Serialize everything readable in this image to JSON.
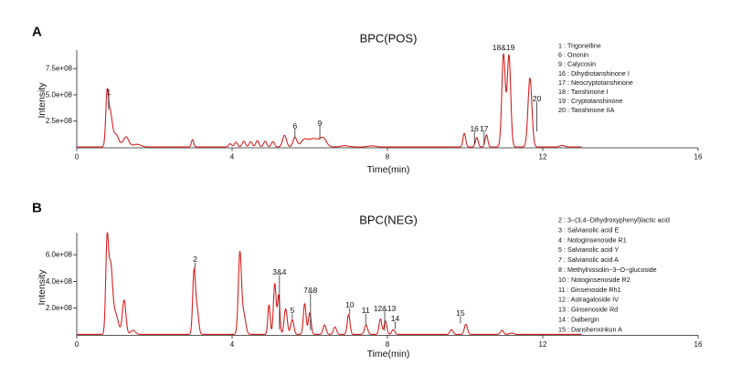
{
  "chart_data": [
    {
      "type": "line",
      "panel_label": "A",
      "title": "BPC(POS)",
      "xlabel": "Time(min)",
      "ylabel": "Intensity",
      "xlim": [
        0,
        16
      ],
      "ylim": [
        0,
        925000000
      ],
      "x_ticks": [
        0,
        4,
        8,
        12,
        16
      ],
      "x_tick_labels": [
        "0",
        "4",
        "8",
        "12",
        "16"
      ],
      "y_ticks": [
        250000000,
        500000000,
        750000000
      ],
      "y_tick_labels": [
        "2.5e+08",
        "5.0e+08",
        "7.5e+08"
      ],
      "series": [
        {
          "name": "BPC(POS)",
          "color": "#d62020",
          "t_range": [
            0,
            13
          ],
          "baseline": 4000000,
          "peaks": [
            {
              "t": 0.78,
              "h": 460000000,
              "w": 0.035
            },
            {
              "t": 0.86,
              "h": 300000000,
              "w": 0.05
            },
            {
              "t": 1.0,
              "h": 120000000,
              "w": 0.08
            },
            {
              "t": 1.27,
              "h": 95000000,
              "w": 0.07
            },
            {
              "t": 1.55,
              "h": 25000000,
              "w": 0.1
            },
            {
              "t": 2.98,
              "h": 70000000,
              "w": 0.03
            },
            {
              "t": 3.95,
              "h": 30000000,
              "w": 0.04
            },
            {
              "t": 4.1,
              "h": 45000000,
              "w": 0.04
            },
            {
              "t": 4.3,
              "h": 55000000,
              "w": 0.04
            },
            {
              "t": 4.48,
              "h": 50000000,
              "w": 0.04
            },
            {
              "t": 4.65,
              "h": 60000000,
              "w": 0.04
            },
            {
              "t": 4.85,
              "h": 55000000,
              "w": 0.04
            },
            {
              "t": 5.05,
              "h": 50000000,
              "w": 0.04
            },
            {
              "t": 5.35,
              "h": 110000000,
              "w": 0.05
            },
            {
              "t": 5.62,
              "h": 90000000,
              "w": 0.05
            },
            {
              "t": 5.85,
              "h": 55000000,
              "w": 0.08
            },
            {
              "t": 6.1,
              "h": 80000000,
              "w": 0.15
            },
            {
              "t": 6.35,
              "h": 70000000,
              "w": 0.08
            },
            {
              "t": 6.9,
              "h": 12000000,
              "w": 0.1
            },
            {
              "t": 7.6,
              "h": 10000000,
              "w": 0.1
            },
            {
              "t": 9.98,
              "h": 130000000,
              "w": 0.035
            },
            {
              "t": 10.3,
              "h": 90000000,
              "w": 0.035
            },
            {
              "t": 10.55,
              "h": 115000000,
              "w": 0.035
            },
            {
              "t": 10.99,
              "h": 880000000,
              "w": 0.045
            },
            {
              "t": 11.13,
              "h": 870000000,
              "w": 0.045
            },
            {
              "t": 11.67,
              "h": 655000000,
              "w": 0.05
            },
            {
              "t": 12.5,
              "h": 15000000,
              "w": 0.06
            }
          ]
        }
      ],
      "annotations": [
        {
          "text": "1",
          "t": 0.82,
          "y": 525000000,
          "line": [
            500000000,
            360000000
          ]
        },
        {
          "text": "6",
          "t": 5.62,
          "y": 204000000,
          "line": [
            180000000,
            90000000
          ]
        },
        {
          "text": "9",
          "t": 6.26,
          "y": 230000000,
          "line": [
            205000000,
            75000000
          ]
        },
        {
          "text": "16",
          "t": 10.24,
          "y": 178000000,
          "line": [
            155000000,
            30000000
          ]
        },
        {
          "text": "17",
          "t": 10.49,
          "y": 178000000,
          "line": [
            155000000,
            30000000
          ]
        },
        {
          "text": "18&19",
          "t": 10.99,
          "y": 951000000,
          "line": null
        },
        {
          "text": "20",
          "t": 11.85,
          "y": 465000000,
          "line": [
            435000000,
            150000000
          ]
        }
      ],
      "legend": [
        "1 : Trigonelline",
        "6 : Ononin",
        "9 : Calycosin",
        "16 : Dihydrotanshinone I",
        "17 : Neocryptotanshinone",
        "18 : Tanshinone I",
        "19 : Cryptotanshinone",
        "20 : Tanshinone IIA"
      ]
    },
    {
      "type": "line",
      "panel_label": "B",
      "title": "BPC(NEG)",
      "xlabel": "Time(min)",
      "ylabel": "Intensity",
      "xlim": [
        0,
        16
      ],
      "ylim": [
        0,
        765000000
      ],
      "x_ticks": [
        0,
        4,
        8,
        12,
        16
      ],
      "x_tick_labels": [
        "0",
        "4",
        "8",
        "12",
        "16"
      ],
      "y_ticks": [
        200000000,
        400000000,
        600000000
      ],
      "y_tick_labels": [
        "2.0e+08",
        "4.0e+08",
        "6.0e+08"
      ],
      "series": [
        {
          "name": "BPC(NEG)",
          "color": "#d62020",
          "t_range": [
            0,
            13
          ],
          "baseline": 4000000,
          "peaks": [
            {
              "t": 0.78,
              "h": 650000000,
              "w": 0.035
            },
            {
              "t": 0.87,
              "h": 500000000,
              "w": 0.05
            },
            {
              "t": 1.0,
              "h": 150000000,
              "w": 0.07
            },
            {
              "t": 1.22,
              "h": 255000000,
              "w": 0.045
            },
            {
              "t": 1.45,
              "h": 30000000,
              "w": 0.06
            },
            {
              "t": 3.02,
              "h": 470000000,
              "w": 0.035
            },
            {
              "t": 3.1,
              "h": 180000000,
              "w": 0.04
            },
            {
              "t": 4.2,
              "h": 600000000,
              "w": 0.04
            },
            {
              "t": 4.3,
              "h": 150000000,
              "w": 0.05
            },
            {
              "t": 4.95,
              "h": 220000000,
              "w": 0.03
            },
            {
              "t": 5.1,
              "h": 380000000,
              "w": 0.035
            },
            {
              "t": 5.2,
              "h": 290000000,
              "w": 0.03
            },
            {
              "t": 5.38,
              "h": 190000000,
              "w": 0.04
            },
            {
              "t": 5.55,
              "h": 110000000,
              "w": 0.04
            },
            {
              "t": 5.87,
              "h": 230000000,
              "w": 0.035
            },
            {
              "t": 6.0,
              "h": 160000000,
              "w": 0.035
            },
            {
              "t": 6.38,
              "h": 70000000,
              "w": 0.04
            },
            {
              "t": 6.65,
              "h": 55000000,
              "w": 0.04
            },
            {
              "t": 7.0,
              "h": 150000000,
              "w": 0.035
            },
            {
              "t": 7.45,
              "h": 70000000,
              "w": 0.04
            },
            {
              "t": 7.82,
              "h": 115000000,
              "w": 0.035
            },
            {
              "t": 7.95,
              "h": 100000000,
              "w": 0.035
            },
            {
              "t": 8.15,
              "h": 35000000,
              "w": 0.04
            },
            {
              "t": 9.65,
              "h": 35000000,
              "w": 0.04
            },
            {
              "t": 10.02,
              "h": 75000000,
              "w": 0.04
            },
            {
              "t": 10.95,
              "h": 30000000,
              "w": 0.04
            },
            {
              "t": 11.2,
              "h": 10000000,
              "w": 0.05
            }
          ]
        }
      ],
      "annotations": [
        {
          "text": "2",
          "t": 3.05,
          "y": 567000000,
          "line": [
            540000000,
            500000000
          ]
        },
        {
          "text": "3&4",
          "t": 5.22,
          "y": 471000000,
          "line": [
            445000000,
            40000000
          ]
        },
        {
          "text": "5",
          "t": 5.55,
          "y": 184000000,
          "line": [
            160000000,
            120000000
          ]
        },
        {
          "text": "7&8",
          "t": 6.02,
          "y": 335000000,
          "line": [
            310000000,
            35000000
          ]
        },
        {
          "text": "10",
          "t": 7.03,
          "y": 225000000,
          "line": [
            200000000,
            155000000
          ]
        },
        {
          "text": "11",
          "t": 7.44,
          "y": 184000000,
          "line": [
            160000000,
            75000000
          ]
        },
        {
          "text": "12&13",
          "t": 7.93,
          "y": 198000000,
          "line": [
            175000000,
            30000000
          ]
        },
        {
          "text": "14",
          "t": 8.2,
          "y": 123000000,
          "line": [
            100000000,
            45000000
          ]
        },
        {
          "text": "15",
          "t": 9.88,
          "y": 164000000,
          "line": [
            140000000,
            85000000
          ]
        }
      ],
      "legend": [
        "2 : 3−(3,4−Dihydroxyphenyl)lactic acid",
        "3 : Salvianolic acid E",
        "4 : Notoginsenoside R1",
        "5 : Salvianolic acid Y",
        "7 : Salvianolic acid A",
        "8 : Methylnissolin−3−O−glucoside",
        "10 : Notoginsenoside R2",
        "11 : Ginsenoside Rh1",
        "12 : Astragaloside IV",
        "13 : Ginsenoside Rd",
        "14 : Dalbergin",
        "15 : Danshenxinkun A"
      ]
    }
  ]
}
